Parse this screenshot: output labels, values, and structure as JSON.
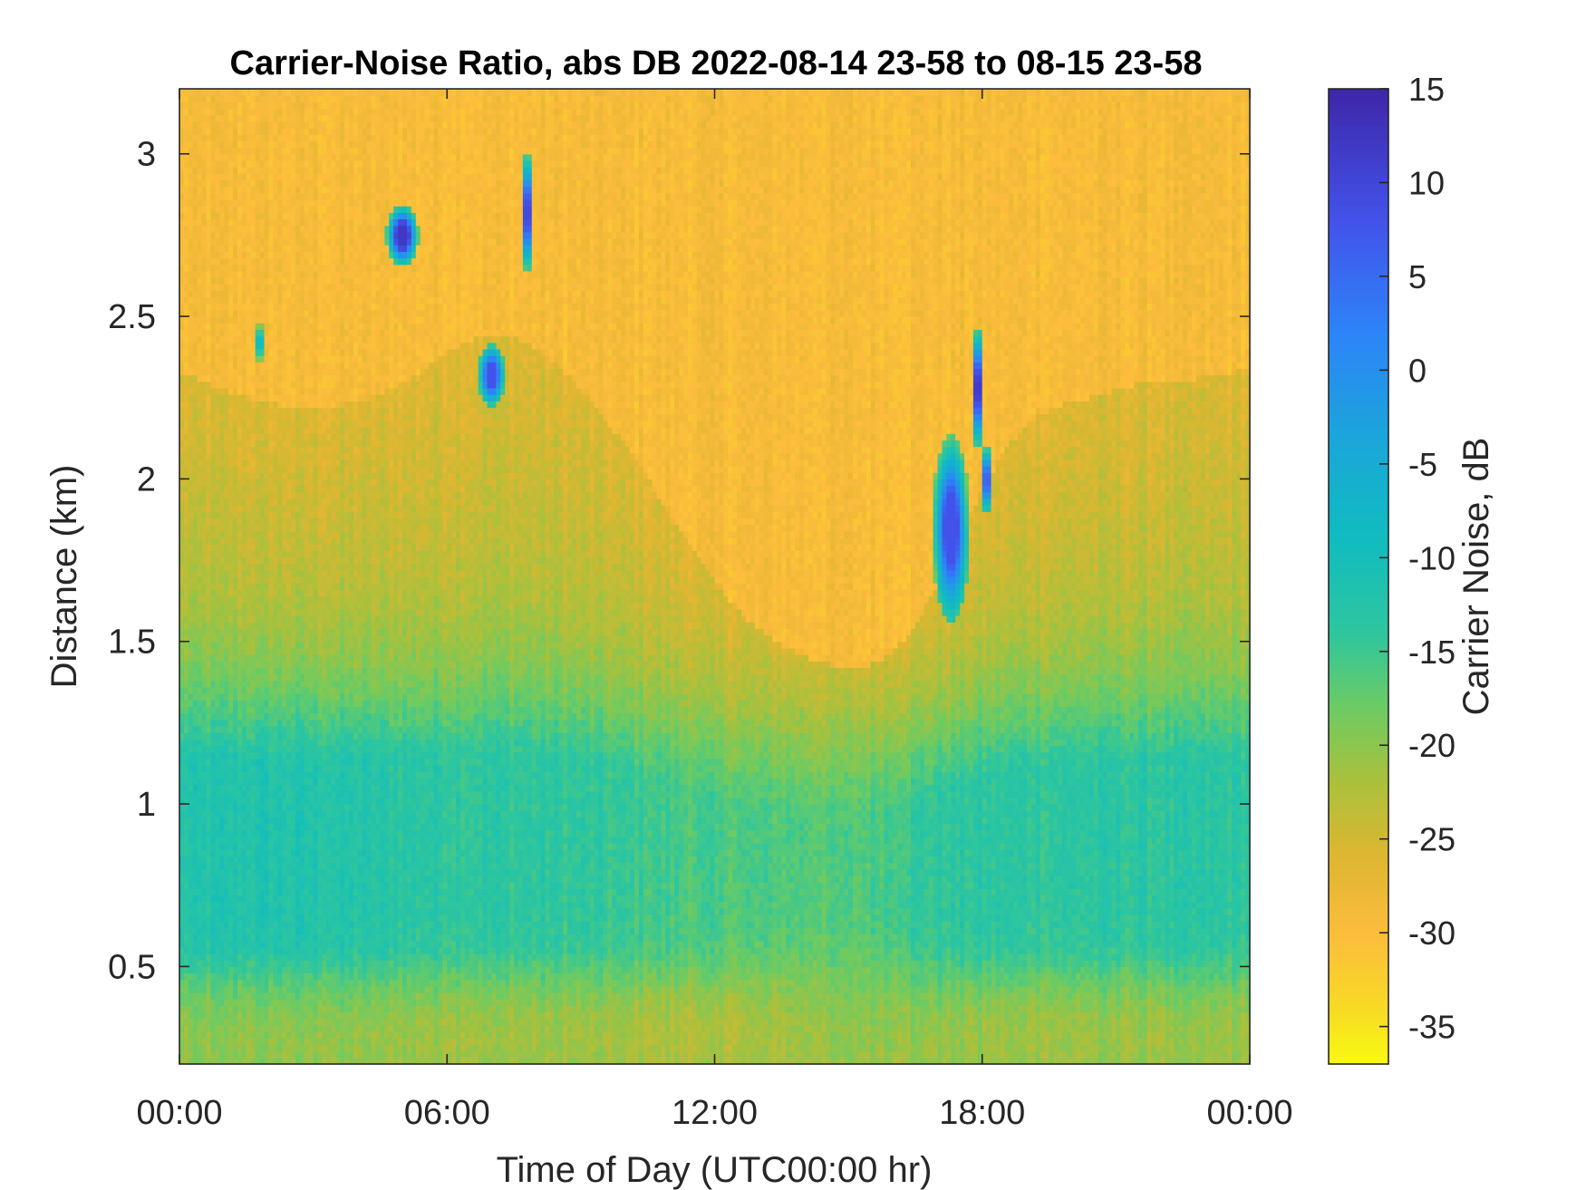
{
  "chart_data": {
    "type": "heatmap",
    "title": "Carrier-Noise Ratio, abs DB 2022-08-14 23-58 to 08-15 23-58",
    "xlabel": "Time of Day (UTC00:00 hr)",
    "ylabel": "Distance (km)",
    "xlim": [
      0,
      24
    ],
    "ylim": [
      0.2,
      3.2
    ],
    "x_ticks": [
      0,
      6,
      12,
      18,
      24
    ],
    "x_tick_labels": [
      "00:00",
      "06:00",
      "12:00",
      "18:00",
      "00:00"
    ],
    "y_ticks": [
      0.5,
      1,
      1.5,
      2,
      2.5,
      3
    ],
    "y_tick_labels": [
      "0.5",
      "1",
      "1.5",
      "2",
      "2.5",
      "3"
    ],
    "colorbar": {
      "label": "Carrier Noise, dB",
      "range": [
        -37,
        15
      ],
      "ticks": [
        15,
        10,
        5,
        0,
        -5,
        -10,
        -15,
        -20,
        -25,
        -30,
        -35
      ],
      "tick_labels": [
        "15",
        "10",
        "5",
        "0",
        "-5",
        "-10",
        "-15",
        "-20",
        "-25",
        "-30",
        "-35"
      ],
      "colormap_stops": [
        {
          "value": 15,
          "color": "#3e26a8"
        },
        {
          "value": 8,
          "color": "#4253ea"
        },
        {
          "value": 2,
          "color": "#2d84f8"
        },
        {
          "value": -4,
          "color": "#1aa8d8"
        },
        {
          "value": -9,
          "color": "#10bcc0"
        },
        {
          "value": -14,
          "color": "#2ec69e"
        },
        {
          "value": -18,
          "color": "#6dcb62"
        },
        {
          "value": -22,
          "color": "#acc03b"
        },
        {
          "value": -26,
          "color": "#dfb631"
        },
        {
          "value": -30,
          "color": "#fcbc3c"
        },
        {
          "value": -34,
          "color": "#f7da25"
        },
        {
          "value": -37,
          "color": "#f9f910"
        }
      ]
    }
  }
}
